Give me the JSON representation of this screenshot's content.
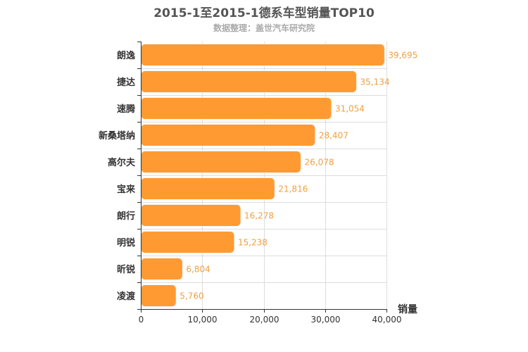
{
  "title": "2015-1至2015-1德系车型销量TOP10",
  "subtitle": "数据整理：盖世汽车研究院",
  "colors": {
    "bar": "#ff9a33",
    "bar_stroke": "#f5f5f5",
    "value_label": "#f0a040",
    "grid": "#dddddd",
    "axis": "#333333"
  },
  "chart_data": {
    "type": "bar",
    "orientation": "horizontal",
    "title": "2015-1至2015-1德系车型销量TOP10",
    "subtitle": "数据整理：盖世汽车研究院",
    "xlabel": "销量",
    "ylabel": "",
    "categories": [
      "朗逸",
      "捷达",
      "速腾",
      "新桑塔纳",
      "高尔夫",
      "宝来",
      "朗行",
      "明锐",
      "昕锐",
      "凌渡"
    ],
    "values": [
      39695,
      35134,
      31054,
      28407,
      26078,
      21816,
      16278,
      15238,
      6804,
      5760
    ],
    "value_labels": [
      "39,695",
      "35,134",
      "31,054",
      "28,407",
      "26,078",
      "21,816",
      "16,278",
      "15,238",
      "6,804",
      "5,760"
    ],
    "xlim": [
      0,
      40000
    ],
    "xticks": [
      0,
      10000,
      20000,
      30000,
      40000
    ],
    "xtick_labels": [
      "0",
      "10,000",
      "20,000",
      "30,000",
      "40,000"
    ],
    "grid": true
  }
}
